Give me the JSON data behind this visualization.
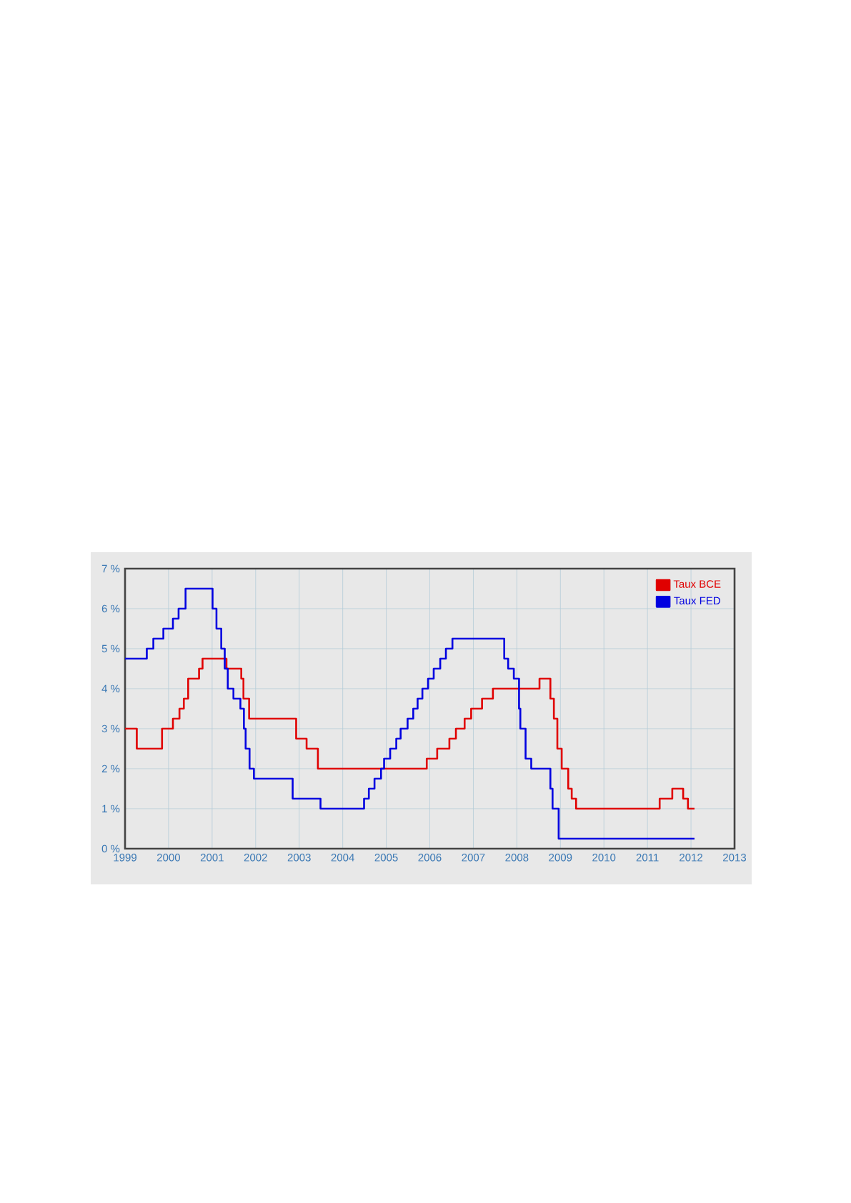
{
  "chart_data": {
    "type": "step",
    "series": [
      {
        "name": "Taux BCE",
        "color": "#e00000",
        "x": [
          1999.0,
          1999.27,
          1999.85,
          2000.1,
          2000.25,
          2000.35,
          2000.45,
          2000.7,
          2000.78,
          2001.33,
          2001.67,
          2001.72,
          2001.85,
          2002.93,
          2003.17,
          2003.43,
          2005.93,
          2006.17,
          2006.45,
          2006.6,
          2006.8,
          2006.95,
          2007.2,
          2007.45,
          2008.52,
          2008.77,
          2008.85,
          2008.93,
          2009.03,
          2009.18,
          2009.26,
          2009.36,
          2011.28,
          2011.57,
          2011.82,
          2011.93,
          2012.08
        ],
        "values": [
          3.0,
          2.5,
          3.0,
          3.25,
          3.5,
          3.75,
          4.25,
          4.5,
          4.75,
          4.5,
          4.25,
          3.75,
          3.25,
          2.75,
          2.5,
          2.0,
          2.25,
          2.5,
          2.75,
          3.0,
          3.25,
          3.5,
          3.75,
          4.0,
          4.25,
          3.75,
          3.25,
          2.5,
          2.0,
          1.5,
          1.25,
          1.0,
          1.25,
          1.5,
          1.25,
          1.0,
          1.0
        ]
      },
      {
        "name": "Taux FED",
        "color": "#0000e0",
        "x": [
          1999.0,
          1999.5,
          1999.65,
          1999.88,
          2000.1,
          2000.23,
          2000.39,
          2001.01,
          2001.1,
          2001.21,
          2001.29,
          2001.36,
          2001.49,
          2001.65,
          2001.73,
          2001.77,
          2001.86,
          2001.96,
          2002.85,
          2003.49,
          2004.49,
          2004.6,
          2004.73,
          2004.88,
          2004.95,
          2005.09,
          2005.23,
          2005.33,
          2005.49,
          2005.62,
          2005.72,
          2005.83,
          2005.96,
          2006.09,
          2006.24,
          2006.37,
          2006.52,
          2007.71,
          2007.8,
          2007.93,
          2008.05,
          2008.08,
          2008.2,
          2008.33,
          2008.77,
          2008.82,
          2008.96,
          2012.08
        ],
        "values": [
          4.75,
          5.0,
          5.25,
          5.5,
          5.75,
          6.0,
          6.5,
          6.0,
          5.5,
          5.0,
          4.5,
          4.0,
          3.75,
          3.5,
          3.0,
          2.5,
          2.0,
          1.75,
          1.25,
          1.0,
          1.25,
          1.5,
          1.75,
          2.0,
          2.25,
          2.5,
          2.75,
          3.0,
          3.25,
          3.5,
          3.75,
          4.0,
          4.25,
          4.5,
          4.75,
          5.0,
          5.25,
          4.75,
          4.5,
          4.25,
          3.5,
          3.0,
          2.25,
          2.0,
          1.5,
          1.0,
          0.25,
          0.25
        ]
      }
    ],
    "xlim": [
      1999,
      2013
    ],
    "xticks": [
      1999,
      2000,
      2001,
      2002,
      2003,
      2004,
      2005,
      2006,
      2007,
      2008,
      2009,
      2010,
      2011,
      2012,
      2013
    ],
    "ylim": [
      0,
      7
    ],
    "yticks": [
      {
        "value": 0,
        "label": "0 %"
      },
      {
        "value": 1,
        "label": "1 %"
      },
      {
        "value": 2,
        "label": "2 %"
      },
      {
        "value": 3,
        "label": "3 %"
      },
      {
        "value": 4,
        "label": "4 %"
      },
      {
        "value": 5,
        "label": "5 %"
      },
      {
        "value": 6,
        "label": "6 %"
      },
      {
        "value": 7,
        "label": "7 %"
      }
    ],
    "grid": true,
    "legend": "top right",
    "marker": "none",
    "line_style": "solid"
  }
}
